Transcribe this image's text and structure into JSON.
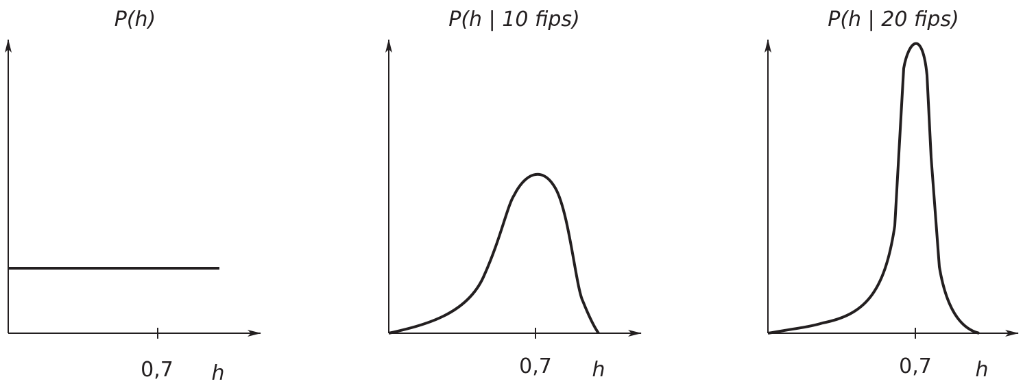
{
  "panels": [
    {
      "title": "P(h)",
      "tick": "0,7",
      "axis_label": "h"
    },
    {
      "title": "P(h | 10 fips)",
      "tick": "0,7",
      "axis_label": "h"
    },
    {
      "title": "P(h | 20 fips)",
      "tick": "0,7",
      "axis_label": "h"
    }
  ]
}
